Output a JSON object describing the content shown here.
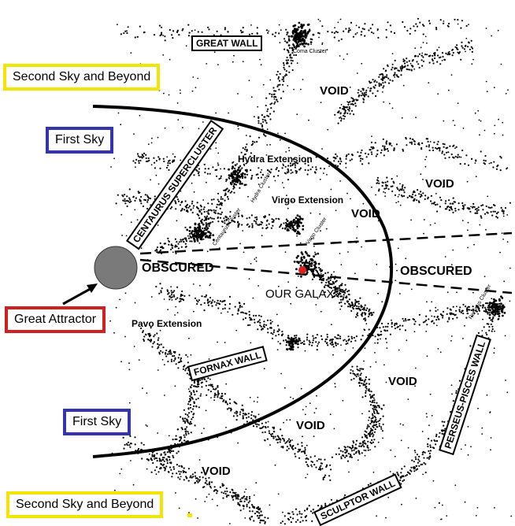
{
  "labels": {
    "second_sky_top": "Second Sky and Beyond",
    "second_sky_bottom": "Second Sky and Beyond",
    "first_sky_top": "First Sky",
    "first_sky_bottom": "First Sky",
    "great_attractor": "Great Attractor",
    "great_wall": "GREAT WALL",
    "coma_cluster": "Coma Cluster",
    "centaurus_supercluster": "CENTAURUS SUPERCLUSTER",
    "hydra_extension": "Hydra Extension",
    "hydra_cluster": "Hydra Cluster",
    "centaurus_cluster": "Centaurus Cluster",
    "virgo_extension": "Virgo Extension",
    "virgo_cluster": "Virgo Cluster",
    "obscured_left": "OBSCURED",
    "obscured_right": "OBSCURED",
    "our_galaxy": "OUR GALAXY",
    "pavo_extension": "Pavo Extension",
    "fornax_wall": "FORNAX WALL",
    "perseus_pisces_wall": "PERSEUS-PISCES WALL",
    "perseus_cluster": "Perseus Cluster",
    "sculptor_wall": "SCULPTOR WALL",
    "void_1": "VOID",
    "void_2": "VOID",
    "void_3": "VOID",
    "void_4": "VOID",
    "void_5": "VOID",
    "void_6": "VOID"
  },
  "colors": {
    "second_sky_border": "#f2e600",
    "first_sky_border": "#3434b0",
    "great_attractor_border": "#d02020",
    "great_attractor_fill": "#7a7a7a",
    "our_galaxy_marker": "#e02020"
  }
}
